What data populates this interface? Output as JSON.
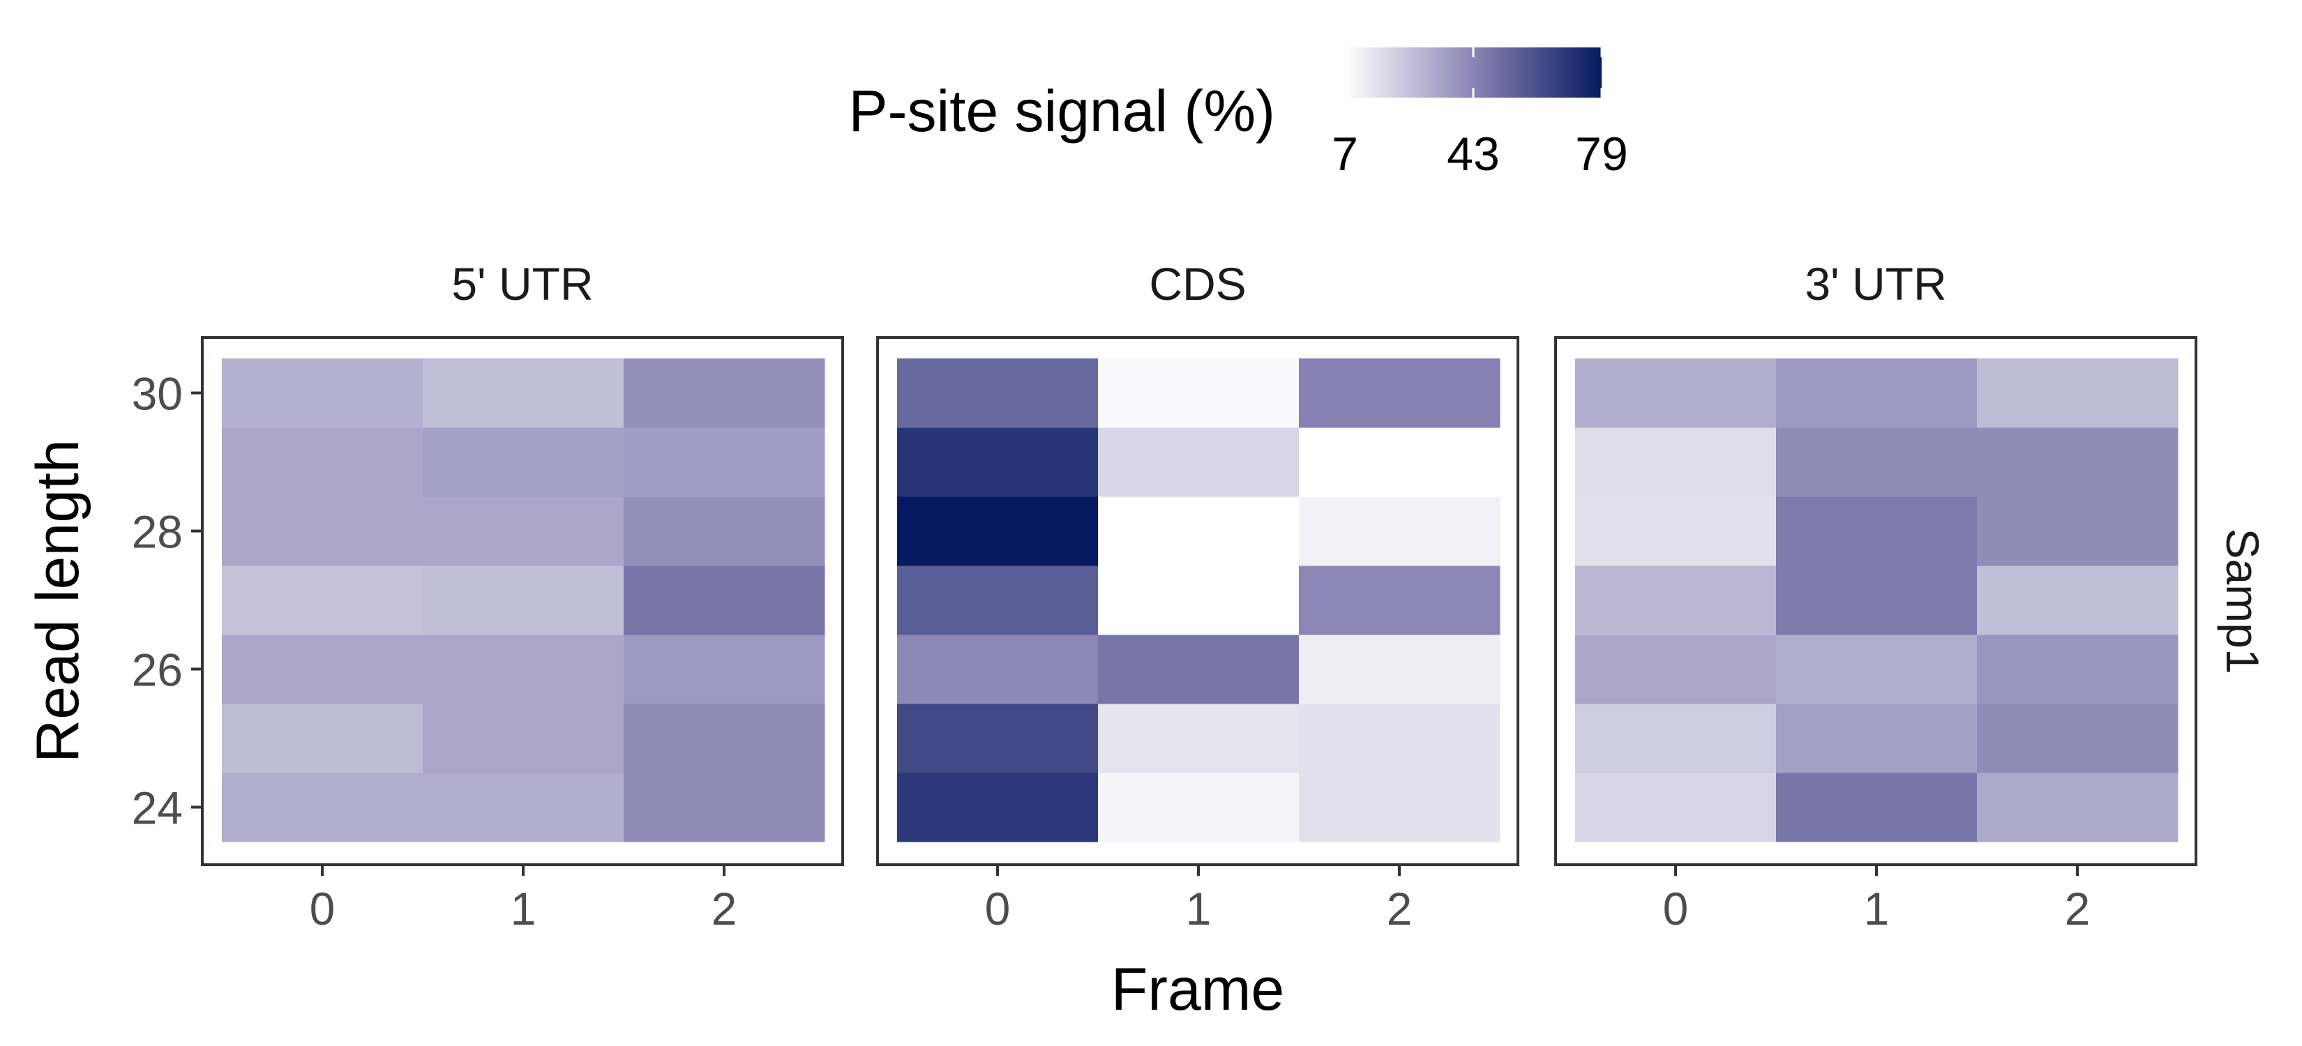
{
  "chart_data": {
    "type": "heatmap",
    "xlabel": "Frame",
    "ylabel": "Read length",
    "x": [
      0,
      1,
      2
    ],
    "y": [
      24,
      25,
      26,
      27,
      28,
      29,
      30
    ],
    "x_ticks": [
      "0",
      "1",
      "2"
    ],
    "y_ticks": [
      "24",
      "26",
      "28",
      "30"
    ],
    "row_label": "Samp1",
    "legend": {
      "title": "P-site signal (%)",
      "min": 7,
      "max": 79,
      "ticks": [
        "7",
        "43",
        "79"
      ],
      "low_color": "#ffffff",
      "high_color": "#061a62",
      "position": "top"
    },
    "panels": [
      {
        "title": "5' UTR",
        "values": {
          "30": [
            30,
            26,
            40
          ],
          "29": [
            33,
            35,
            36
          ],
          "28": [
            33,
            33,
            40
          ],
          "27": [
            25,
            26,
            48
          ],
          "26": [
            33,
            33,
            37
          ],
          "25": [
            27,
            33,
            41
          ],
          "24": [
            31,
            31,
            41
          ]
        }
      },
      {
        "title": "CDS",
        "values": {
          "30": [
            52,
            9,
            44
          ],
          "29": [
            70,
            19,
            7
          ],
          "28": [
            79,
            7,
            11
          ],
          "27": [
            56,
            7,
            42
          ],
          "26": [
            42,
            48,
            12
          ],
          "25": [
            63,
            15,
            16
          ],
          "24": [
            69,
            10,
            16
          ]
        }
      },
      {
        "title": "3' UTR",
        "values": {
          "30": [
            31,
            37,
            27
          ],
          "29": [
            17,
            41,
            41
          ],
          "28": [
            16,
            46,
            41
          ],
          "27": [
            28,
            46,
            26
          ],
          "26": [
            33,
            31,
            38
          ],
          "25": [
            22,
            35,
            41
          ],
          "24": [
            19,
            48,
            32
          ]
        }
      }
    ]
  }
}
